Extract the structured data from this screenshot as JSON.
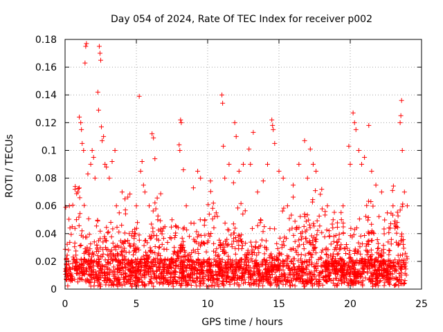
{
  "chart_data": {
    "type": "scatter",
    "title": "Day 054 of 2024, Rate Of TEC Index for receiver p002",
    "xlabel": "GPS time / hours",
    "ylabel": "ROTI / TECUs",
    "xlim": [
      0,
      25
    ],
    "ylim": [
      0,
      0.18
    ],
    "xticks": [
      0,
      5,
      10,
      15,
      20,
      25
    ],
    "xtick_labels": [
      "0",
      "5",
      "10",
      "15",
      "20",
      "25"
    ],
    "yticks": [
      0,
      0.02,
      0.04,
      0.06,
      0.08,
      0.1,
      0.12,
      0.14,
      0.16,
      0.18
    ],
    "ytick_labels": [
      "0",
      "0.02",
      "0.04",
      "0.06",
      "0.08",
      "0.1",
      "0.12",
      "0.14",
      "0.16",
      "0.18"
    ],
    "grid": true,
    "marker": "+",
    "marker_color": "#ff0000",
    "data_range_hours": [
      0,
      24
    ],
    "series": [
      {
        "name": "ROTI",
        "points": [
          [
            0.05,
            0.059
          ],
          [
            0.3,
            0.06
          ],
          [
            0.5,
            0.045
          ],
          [
            0.7,
            0.072
          ],
          [
            0.9,
            0.07
          ],
          [
            1.0,
            0.124
          ],
          [
            1.1,
            0.12
          ],
          [
            1.15,
            0.115
          ],
          [
            1.2,
            0.105
          ],
          [
            1.3,
            0.1
          ],
          [
            1.4,
            0.163
          ],
          [
            1.45,
            0.175
          ],
          [
            1.5,
            0.177
          ],
          [
            1.6,
            0.083
          ],
          [
            1.8,
            0.09
          ],
          [
            1.9,
            0.1
          ],
          [
            2.0,
            0.095
          ],
          [
            2.1,
            0.08
          ],
          [
            2.3,
            0.142
          ],
          [
            2.35,
            0.129
          ],
          [
            2.4,
            0.175
          ],
          [
            2.45,
            0.17
          ],
          [
            2.5,
            0.165
          ],
          [
            2.55,
            0.117
          ],
          [
            2.6,
            0.107
          ],
          [
            2.7,
            0.11
          ],
          [
            2.8,
            0.09
          ],
          [
            2.9,
            0.088
          ],
          [
            3.1,
            0.08
          ],
          [
            3.3,
            0.092
          ],
          [
            3.5,
            0.1
          ],
          [
            3.6,
            0.06
          ],
          [
            3.8,
            0.055
          ],
          [
            4.0,
            0.07
          ],
          [
            4.2,
            0.065
          ],
          [
            4.5,
            0.04
          ],
          [
            5.0,
            0.06
          ],
          [
            5.2,
            0.139
          ],
          [
            5.3,
            0.085
          ],
          [
            5.4,
            0.092
          ],
          [
            5.5,
            0.075
          ],
          [
            5.6,
            0.07
          ],
          [
            5.9,
            0.06
          ],
          [
            6.1,
            0.112
          ],
          [
            6.2,
            0.109
          ],
          [
            6.3,
            0.094
          ],
          [
            6.5,
            0.05
          ],
          [
            7.0,
            0.045
          ],
          [
            7.5,
            0.05
          ],
          [
            7.8,
            0.045
          ],
          [
            8.0,
            0.104
          ],
          [
            8.05,
            0.1
          ],
          [
            8.1,
            0.122
          ],
          [
            8.15,
            0.12
          ],
          [
            8.3,
            0.086
          ],
          [
            8.5,
            0.06
          ],
          [
            9.0,
            0.073
          ],
          [
            9.3,
            0.085
          ],
          [
            9.5,
            0.08
          ],
          [
            9.8,
            0.05
          ],
          [
            10.2,
            0.078
          ],
          [
            10.4,
            0.062
          ],
          [
            10.6,
            0.055
          ],
          [
            11.0,
            0.14
          ],
          [
            11.05,
            0.134
          ],
          [
            11.1,
            0.103
          ],
          [
            11.2,
            0.08
          ],
          [
            11.5,
            0.09
          ],
          [
            11.9,
            0.12
          ],
          [
            12.0,
            0.11
          ],
          [
            12.2,
            0.085
          ],
          [
            12.5,
            0.09
          ],
          [
            12.9,
            0.101
          ],
          [
            13.0,
            0.09
          ],
          [
            13.2,
            0.113
          ],
          [
            13.5,
            0.07
          ],
          [
            13.9,
            0.078
          ],
          [
            14.2,
            0.09
          ],
          [
            14.5,
            0.122
          ],
          [
            14.55,
            0.118
          ],
          [
            14.6,
            0.115
          ],
          [
            14.7,
            0.105
          ],
          [
            15.0,
            0.085
          ],
          [
            15.3,
            0.08
          ],
          [
            15.6,
            0.06
          ],
          [
            16.0,
            0.075
          ],
          [
            16.4,
            0.09
          ],
          [
            16.8,
            0.107
          ],
          [
            17.0,
            0.08
          ],
          [
            17.2,
            0.101
          ],
          [
            17.4,
            0.09
          ],
          [
            17.6,
            0.085
          ],
          [
            18.0,
            0.072
          ],
          [
            18.4,
            0.06
          ],
          [
            18.8,
            0.05
          ],
          [
            19.5,
            0.06
          ],
          [
            19.9,
            0.103
          ],
          [
            20.0,
            0.09
          ],
          [
            20.2,
            0.127
          ],
          [
            20.3,
            0.12
          ],
          [
            20.4,
            0.115
          ],
          [
            20.6,
            0.1
          ],
          [
            20.8,
            0.09
          ],
          [
            21.0,
            0.095
          ],
          [
            21.3,
            0.118
          ],
          [
            21.5,
            0.085
          ],
          [
            21.8,
            0.075
          ],
          [
            22.2,
            0.07
          ],
          [
            22.6,
            0.055
          ],
          [
            23.0,
            0.06
          ],
          [
            23.5,
            0.12
          ],
          [
            23.55,
            0.125
          ],
          [
            23.6,
            0.136
          ],
          [
            23.65,
            0.1
          ],
          [
            23.8,
            0.07
          ],
          [
            24.0,
            0.06
          ]
        ]
      }
    ]
  }
}
